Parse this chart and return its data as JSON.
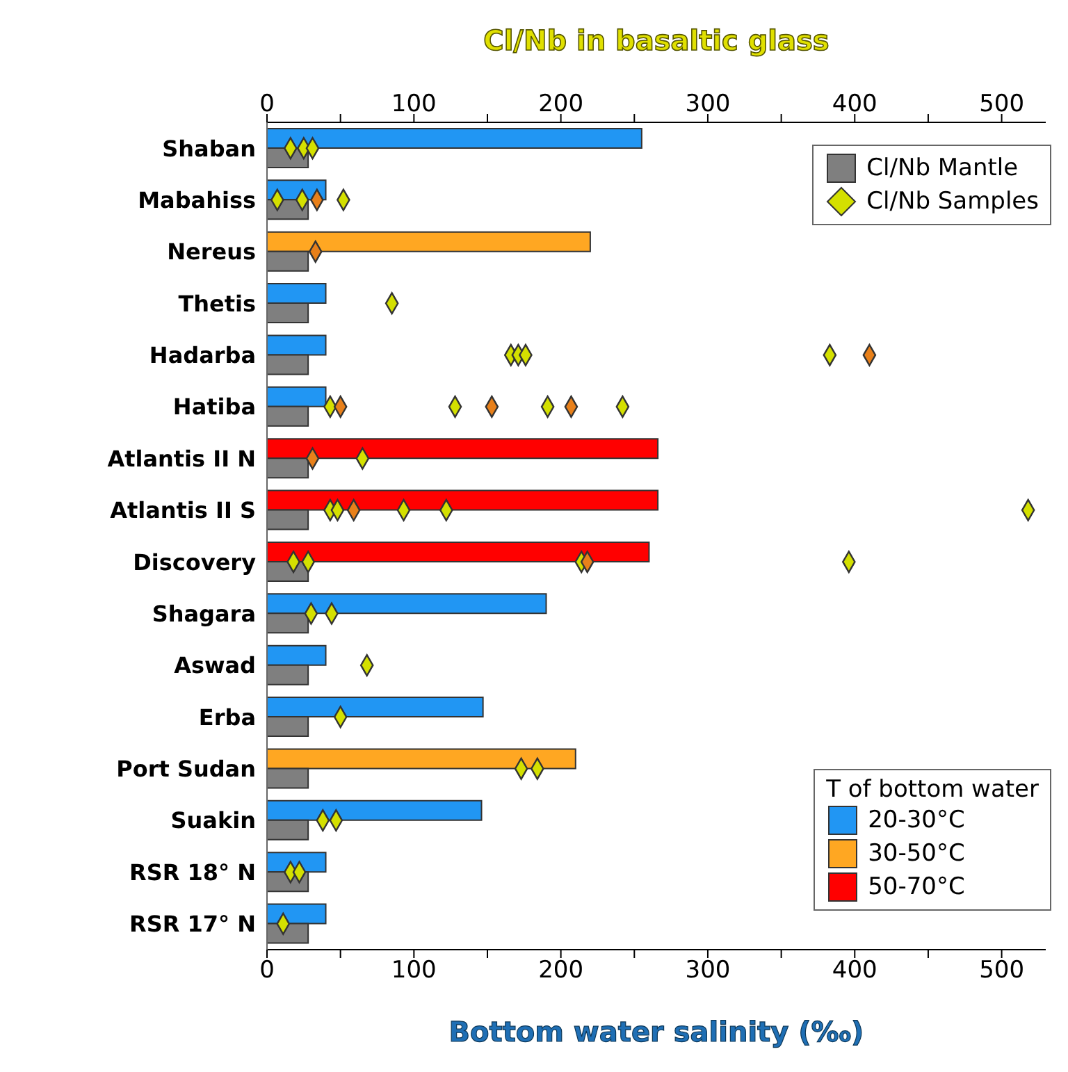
{
  "chart_data": {
    "type": "bar",
    "orientation": "horizontal",
    "x2label": "Cl/Nb in basaltic glass",
    "xlabel": "Bottom water salinity (‰)",
    "legend_title": "T of bottom water",
    "legend": "top right",
    "categories": [
      "Shaban",
      "Mabahiss",
      "Nereus",
      "Thetis",
      "Hadarba",
      "Hatiba",
      "Atlantis II N",
      "Atlantis II S",
      "Discovery",
      "Shagara",
      "Aswad",
      "Erba",
      "Port Sudan",
      "Suakin",
      "RSR 18° N",
      "RSR 17° N"
    ],
    "xlim": [
      0,
      530
    ],
    "xticks": [
      0,
      {
        "value": 50,
        "label": null
      },
      100,
      {
        "value": 150,
        "label": null
      },
      200,
      {
        "value": 250,
        "label": null
      },
      300,
      {
        "value": 350,
        "label": null
      },
      400,
      {
        "value": 450,
        "label": null
      },
      500
    ],
    "x2lim": [
      0,
      530
    ],
    "x2ticks": [
      0,
      {
        "value": 50,
        "label": null
      },
      100,
      {
        "value": 150,
        "label": null
      },
      200,
      {
        "value": 250,
        "label": null
      },
      300,
      {
        "value": 350,
        "label": null
      },
      400,
      {
        "value": 450,
        "label": null
      },
      500
    ],
    "series": [
      {
        "name": "20-30°C",
        "color": "#2196f3",
        "values": [
          255,
          40,
          null,
          40,
          40,
          40,
          null,
          null,
          null,
          190,
          40,
          147,
          null,
          146,
          40,
          40
        ]
      },
      {
        "name": "30-50°C",
        "color": "#ffa722",
        "values": [
          null,
          null,
          220,
          null,
          null,
          null,
          null,
          null,
          null,
          null,
          null,
          null,
          210,
          null,
          null,
          null
        ]
      },
      {
        "name": "50-70°C",
        "color": "#ff0000",
        "values": [
          null,
          null,
          null,
          null,
          null,
          null,
          266,
          266,
          260,
          null,
          null,
          null,
          null,
          null,
          null,
          null
        ]
      },
      {
        "name": "Cl/Nb Mantle",
        "type": "bar",
        "axis": "x2",
        "color": "#7f7f7f",
        "values": [
          28,
          28,
          28,
          28,
          28,
          28,
          28,
          28,
          28,
          28,
          28,
          28,
          28,
          28,
          28,
          28
        ]
      },
      {
        "name": "Cl/Nb Samples",
        "type": "scatter",
        "axis": "x2",
        "color": "#d4e000",
        "marker": "diamond",
        "x": [
          "Shaban",
          "Shaban",
          "Shaban",
          "Mabahiss",
          "Mabahiss",
          "Mabahiss",
          "Thetis",
          "Hadarba",
          "Hadarba",
          "Hadarba",
          "Hadarba",
          "Hatiba",
          "Hatiba",
          "Hatiba",
          "Hatiba",
          "Atlantis II N",
          "Atlantis II S",
          "Atlantis II S",
          "Atlantis II S",
          "Atlantis II S",
          "Atlantis II S",
          "Discovery",
          "Discovery",
          "Discovery",
          "Discovery",
          "Shagara",
          "Shagara",
          "Aswad",
          "Erba",
          "Port Sudan",
          "Port Sudan",
          "Suakin",
          "Suakin",
          "RSR 18° N",
          "RSR 18° N",
          "RSR 17° N"
        ],
        "values": [
          16,
          25,
          31,
          7,
          24,
          52,
          85,
          166,
          171,
          176,
          383,
          43,
          128,
          191,
          242,
          65,
          43,
          48,
          93,
          122,
          518,
          18,
          28,
          214,
          396,
          30,
          44,
          68,
          50,
          173,
          184,
          38,
          47,
          16,
          22,
          11
        ]
      },
      {
        "type": "scatter",
        "axis": "x2",
        "color": "#e8801a",
        "marker": "diamond",
        "x": [
          "Mabahiss",
          "Nereus",
          "Hadarba",
          "Hatiba",
          "Hatiba",
          "Hatiba",
          "Atlantis II N",
          "Atlantis II S",
          "Discovery"
        ],
        "values": [
          34,
          33,
          410,
          50,
          153,
          207,
          31,
          59,
          218
        ]
      }
    ]
  }
}
